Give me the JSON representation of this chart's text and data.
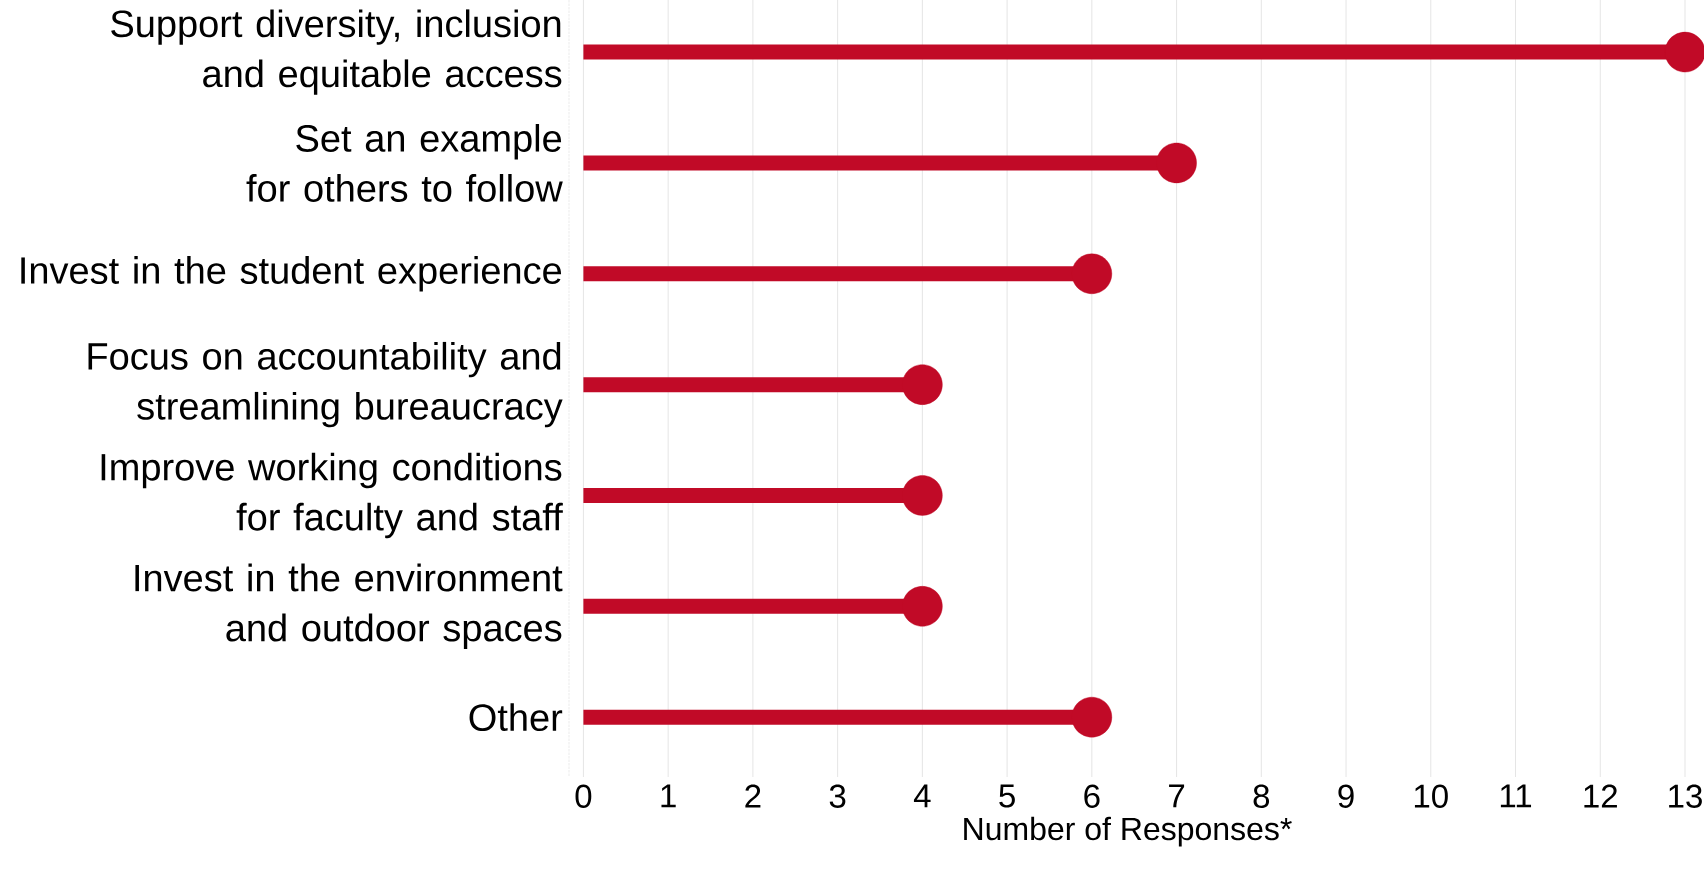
{
  "chart_data": {
    "type": "lollipop",
    "orientation": "horizontal",
    "xlabel": "Number of Responses*",
    "categories": [
      "Support diversity, inclusion and equitable access",
      "Set an example for others to follow",
      "Invest in the student experience",
      "Focus on accountability and streamlining bureaucracy",
      "Improve working conditions for faculty and staff",
      "Invest in the environment and outdoor spaces",
      "Other"
    ],
    "values": [
      13,
      7,
      6,
      4,
      4,
      4,
      6
    ],
    "color": "#c10a27",
    "xlim": [
      -0.17,
      13
    ],
    "xticks": [
      0,
      1,
      2,
      3,
      4,
      5,
      6,
      7,
      8,
      9,
      10,
      11,
      12,
      13
    ],
    "grid": "x",
    "marker": "circle"
  }
}
